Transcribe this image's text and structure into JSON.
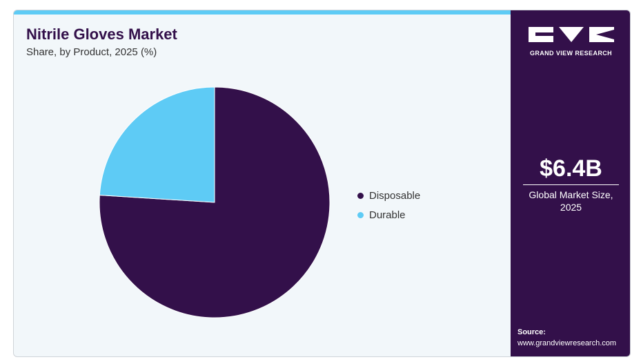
{
  "header": {
    "title": "Nitrile Gloves Market",
    "subtitle": "Share, by Product, 2025 (%)"
  },
  "colors": {
    "accent_bar": "#5ecbf5",
    "panel_bg": "#33104a",
    "chart_bg": "#f2f7fa",
    "disposable": "#33104a",
    "durable": "#5ecbf5"
  },
  "chart_data": {
    "type": "pie",
    "title": "Nitrile Gloves Market",
    "subtitle": "Share, by Product, 2025 (%)",
    "categories": [
      "Disposable",
      "Durable"
    ],
    "values": [
      76,
      24
    ],
    "colors": [
      "#33104a",
      "#5ecbf5"
    ],
    "start_angle_deg": 0,
    "direction": "clockwise",
    "legend_placement": "right"
  },
  "legend": {
    "items": [
      {
        "label": "Disposable",
        "color": "#33104a"
      },
      {
        "label": "Durable",
        "color": "#5ecbf5"
      }
    ]
  },
  "sidebar": {
    "brand": "GRAND VIEW RESEARCH",
    "logo_icon": "gvr-logo-icon",
    "kpi_value": "$6.4B",
    "kpi_label": "Global Market Size, 2025",
    "source_title": "Source:",
    "source_url": "www.grandviewresearch.com"
  }
}
